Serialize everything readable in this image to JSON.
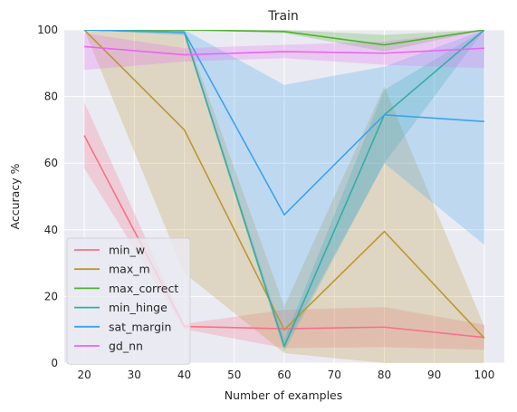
{
  "chart_data": {
    "type": "line",
    "title": "Train",
    "xlabel": "Number of examples",
    "ylabel": "Accuracy %",
    "xlim": [
      16,
      104
    ],
    "ylim": [
      0,
      100
    ],
    "xticks": [
      20,
      30,
      40,
      50,
      60,
      70,
      80,
      90,
      100
    ],
    "yticks": [
      0,
      20,
      40,
      60,
      80,
      100
    ],
    "grid": true,
    "background": "#eaeaf2",
    "legend_position": "lower-left",
    "x": [
      20,
      40,
      60,
      80,
      100
    ],
    "series": [
      {
        "name": "min_w",
        "color": "#f77189",
        "values": [
          68.3,
          11.0,
          10.3,
          10.8,
          7.7
        ],
        "lower": [
          58.5,
          10.2,
          4.5,
          4.8,
          4.0
        ],
        "upper": [
          78.3,
          11.8,
          16.0,
          16.8,
          11.5
        ]
      },
      {
        "name": "max_m",
        "color": "#bb9832",
        "values": [
          100,
          70.0,
          10.0,
          39.5,
          7.5
        ],
        "lower": [
          100,
          27.0,
          3.0,
          0,
          0
        ],
        "upper": [
          100,
          100,
          17.0,
          83.0,
          11.0
        ]
      },
      {
        "name": "max_correct",
        "color": "#50b131",
        "values": [
          100,
          100,
          99.5,
          95.5,
          100
        ],
        "lower": [
          100,
          100,
          99.0,
          93.5,
          100
        ],
        "upper": [
          100,
          100,
          100,
          98.5,
          100
        ]
      },
      {
        "name": "min_hinge",
        "color": "#36ada4",
        "values": [
          100,
          99.3,
          5.0,
          74.5,
          100
        ],
        "lower": [
          100,
          98.5,
          3.5,
          60.0,
          100
        ],
        "upper": [
          100,
          100,
          7.0,
          82.0,
          100
        ]
      },
      {
        "name": "sat_margin",
        "color": "#3ba3ec",
        "values": [
          100,
          99.3,
          44.5,
          74.5,
          72.5
        ],
        "lower": [
          100,
          98.5,
          5.0,
          60.0,
          35.5
        ],
        "upper": [
          100,
          100,
          83.5,
          89.0,
          100
        ]
      },
      {
        "name": "gd_nn",
        "color": "#e866f4",
        "values": [
          95.0,
          92.5,
          93.5,
          93.0,
          94.5
        ],
        "lower": [
          88.0,
          90.5,
          91.5,
          89.5,
          88.5
        ],
        "upper": [
          99.0,
          94.5,
          95.5,
          96.5,
          100
        ]
      }
    ]
  }
}
